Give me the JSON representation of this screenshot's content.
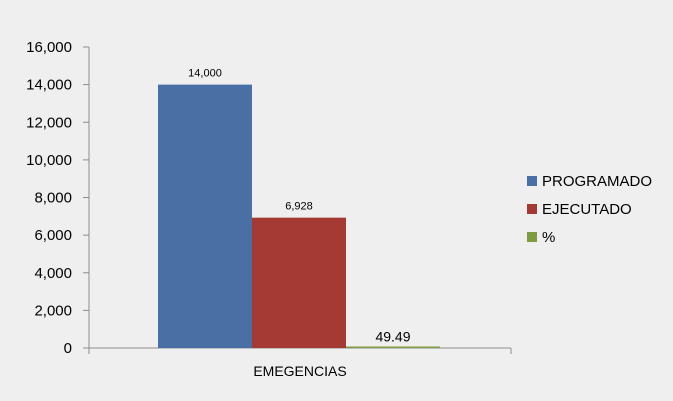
{
  "chart_data": {
    "type": "bar",
    "categories": [
      "EMEGENCIAS"
    ],
    "series": [
      {
        "name": "PROGRAMADO",
        "values": [
          14000
        ],
        "color": "#4a6fa5",
        "data_label": "14,000"
      },
      {
        "name": "EJECUTADO",
        "values": [
          6928
        ],
        "color": "#a53a35",
        "data_label": "6,928"
      },
      {
        "name": "%",
        "values": [
          49.49
        ],
        "color": "#7f9b3f",
        "data_label": "49.49"
      }
    ],
    "ylim": [
      0,
      16000
    ],
    "yticks": [
      0,
      2000,
      4000,
      6000,
      8000,
      10000,
      12000,
      14000,
      16000
    ],
    "ytick_labels": [
      "0",
      "2,000",
      "4,000",
      "6,000",
      "8,000",
      "10,000",
      "12,000",
      "14,000",
      "16,000"
    ],
    "legend_position": "right",
    "grid": false
  }
}
